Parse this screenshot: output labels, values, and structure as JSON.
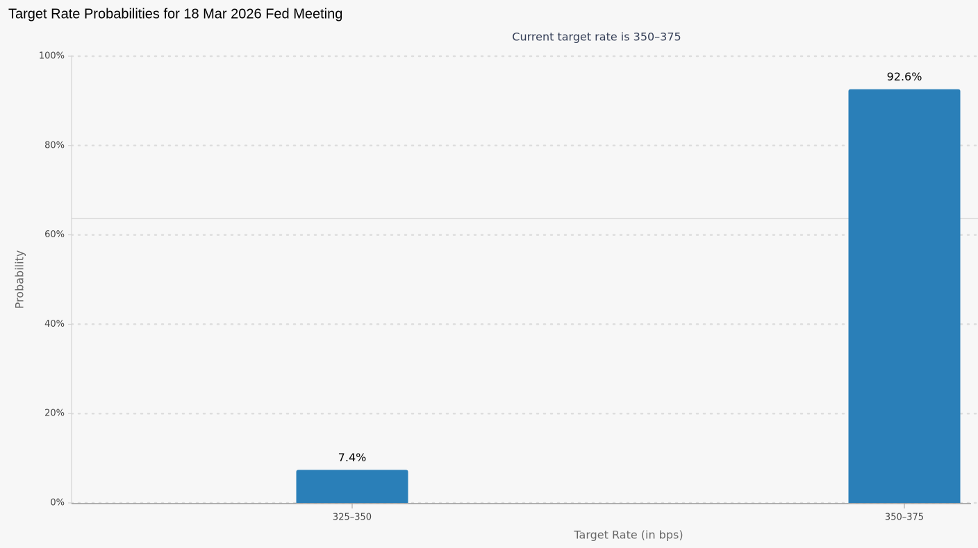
{
  "chart_data": {
    "type": "bar",
    "title": "Target Rate Probabilities for 18 Mar 2026 Fed Meeting",
    "subtitle": "Current target rate is 350–375",
    "x_label": "Target Rate (in bps)",
    "y_label": "Probability",
    "categories": [
      "325–350",
      "350–375"
    ],
    "values": [
      7.4,
      92.6
    ],
    "value_labels": [
      "7.4%",
      "92.6%"
    ],
    "color": "#2a7fb8",
    "ylim": [
      0,
      100
    ],
    "yticks": [
      {
        "value": 0,
        "label": "0%"
      },
      {
        "value": 20,
        "label": "20%"
      },
      {
        "value": 40,
        "label": "40%"
      },
      {
        "value": 60,
        "label": "60%"
      },
      {
        "value": 80,
        "label": "80%"
      },
      {
        "value": 100,
        "label": "100%"
      }
    ],
    "grid": true
  }
}
